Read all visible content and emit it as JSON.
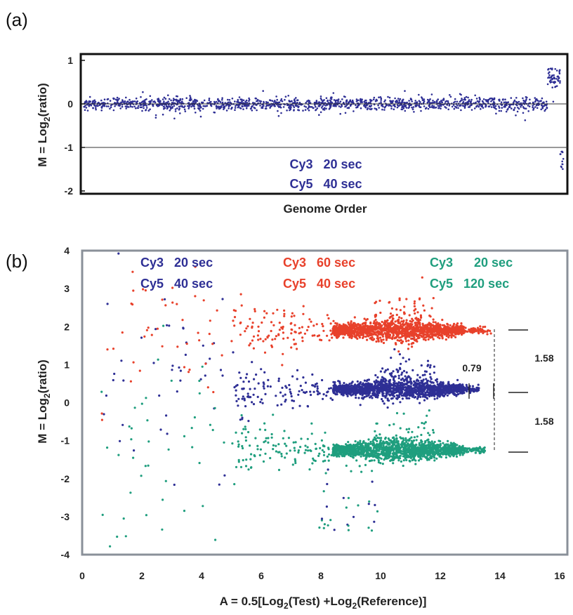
{
  "colors": {
    "blue": "#2e2f95",
    "red": "#e8412b",
    "green": "#1f9e7e",
    "frame_a": "#111111",
    "frame_b": "#8a9099"
  },
  "panel_a": {
    "label": "(a)",
    "annotation": {
      "line1": "Cy3   20 sec",
      "line2": "Cy5   40 sec"
    }
  },
  "panel_b": {
    "label": "(b)",
    "legend": [
      {
        "line1": "Cy3   20 sec",
        "line2": "Cy5   40 sec",
        "color": "#2e2f95"
      },
      {
        "line1": "Cy3   60 sec",
        "line2": "Cy5   40 sec",
        "color": "#e8412b"
      },
      {
        "line1": "Cy3      20 sec",
        "line2": "Cy5   120 sec",
        "color": "#1f9e7e"
      }
    ],
    "dimensions": {
      "inner": "0.79",
      "upper": "1.58",
      "lower": "1.58"
    }
  },
  "chart_data": [
    {
      "type": "scatter",
      "panel": "(a)",
      "xlabel": "Genome Order",
      "ylabel_parts": [
        "M = Log",
        "2",
        "(ratio)"
      ],
      "ylim": [
        -2,
        1
      ],
      "yticks": [
        "1",
        "0",
        "-1",
        "-2"
      ],
      "reference_lines_y": [
        0,
        -1
      ],
      "series": [
        {
          "color": "#2e2f95",
          "points": "genes along the genome; M near 0, spread about ±0.15; final segment M≈0.5 to 0.9; last few points M≈-1 to -1.5"
        }
      ]
    },
    {
      "type": "scatter",
      "panel": "(b)",
      "xlabel_parts": [
        "A = 0.5[Log",
        "2",
        "(Test) +Log",
        "2",
        "(Reference)]"
      ],
      "ylabel_parts": [
        "M = Log",
        "2",
        "(ratio)"
      ],
      "xlim": [
        0,
        16
      ],
      "ylim": [
        -4,
        4
      ],
      "xticks": [
        "0",
        "2",
        "4",
        "6",
        "8",
        "10",
        "12",
        "14",
        "16"
      ],
      "yticks": [
        "4",
        "3",
        "2",
        "1",
        "0",
        "-1",
        "-2",
        "-3",
        "-4"
      ],
      "series": [
        {
          "color": "#e8412b",
          "center_M": 1.9,
          "dense_A_range": [
            8.5,
            12.8
          ],
          "max_A": 13.7
        },
        {
          "color": "#2e2f95",
          "center_M": 0.35,
          "dense_A_range": [
            8.5,
            12.8
          ],
          "max_A": 13.3
        },
        {
          "color": "#1f9e7e",
          "center_M": -1.25,
          "dense_A_range": [
            8.5,
            12.8
          ],
          "max_A": 13.5
        }
      ]
    }
  ]
}
